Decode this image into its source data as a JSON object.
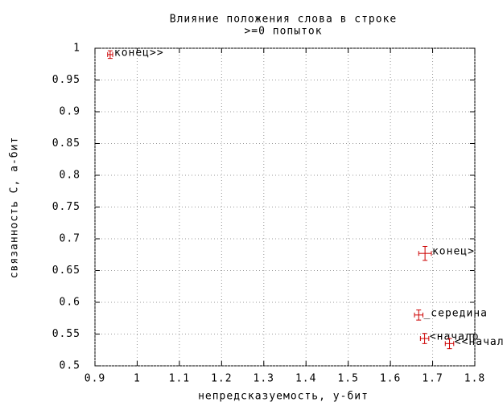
{
  "chart_data": {
    "type": "scatter",
    "title": "Влияние положения слова в строке",
    "subtitle": ">=0 попыток",
    "xlabel": "непредсказуемость, у-бит",
    "ylabel": "связанность С, а-бит",
    "xlim": [
      0.9,
      1.8
    ],
    "ylim": [
      0.5,
      1
    ],
    "xticks": [
      0.9,
      1,
      1.1,
      1.2,
      1.3,
      1.4,
      1.5,
      1.6,
      1.7,
      1.8
    ],
    "yticks": [
      0.5,
      0.55,
      0.6,
      0.65,
      0.7,
      0.75,
      0.8,
      0.85,
      0.9,
      0.95,
      1
    ],
    "grid": true,
    "series": [
      {
        "color": "#cc0000",
        "x": [
          0.936,
          1.682,
          1.667,
          1.681,
          1.74
        ],
        "y": [
          0.99,
          0.677,
          0.58,
          0.543,
          0.535
        ],
        "xerr": [
          0.006,
          0.015,
          0.01,
          0.01,
          0.01
        ],
        "yerr": [
          0.006,
          0.011,
          0.008,
          0.008,
          0.008
        ],
        "labels": [
          "конец>>",
          "конец>",
          "_середина",
          "<начало",
          "<<начало"
        ]
      }
    ]
  }
}
